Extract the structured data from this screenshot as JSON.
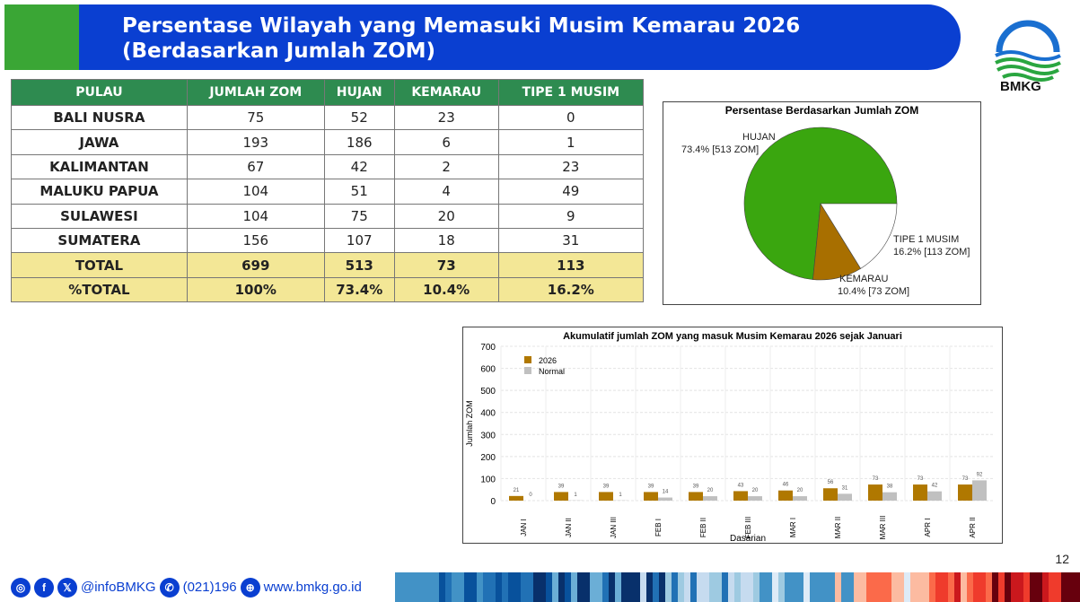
{
  "header": {
    "title_line1": "Persentase Wilayah yang Memasuki Musim Kemarau 2026",
    "title_line2": "(Berdasarkan Jumlah ZOM)",
    "logo_text": "BMKG"
  },
  "table": {
    "columns": [
      "PULAU",
      "JUMLAH ZOM",
      "HUJAN",
      "KEMARAU",
      "TIPE 1 MUSIM"
    ],
    "rows": [
      [
        "BALI NUSRA",
        "75",
        "52",
        "23",
        "0"
      ],
      [
        "JAWA",
        "193",
        "186",
        "6",
        "1"
      ],
      [
        "KALIMANTAN",
        "67",
        "42",
        "2",
        "23"
      ],
      [
        "MALUKU PAPUA",
        "104",
        "51",
        "4",
        "49"
      ],
      [
        "SULAWESI",
        "104",
        "75",
        "20",
        "9"
      ],
      [
        "SUMATERA",
        "156",
        "107",
        "18",
        "31"
      ]
    ],
    "totals": [
      [
        "TOTAL",
        "699",
        "513",
        "73",
        "113"
      ],
      [
        "%TOTAL",
        "100%",
        "73.4%",
        "10.4%",
        "16.2%"
      ]
    ]
  },
  "chart_data": [
    {
      "type": "pie",
      "title": "Persentase Berdasarkan Jumlah ZOM",
      "slices": [
        {
          "label": "HUJAN",
          "value": 73.4,
          "text": "73.4% [513 ZOM]",
          "color": "#3aa60f"
        },
        {
          "label": "KEMARAU",
          "value": 10.4,
          "text": "10.4% [73 ZOM]",
          "color": "#a86f00"
        },
        {
          "label": "TIPE 1 MUSIM",
          "value": 16.2,
          "text": "16.2% [113 ZOM]",
          "color": "#ffffff"
        }
      ]
    },
    {
      "type": "bar",
      "title": "Akumulatif jumlah ZOM yang masuk Musim Kemarau 2026 sejak Januari",
      "xlabel": "Dasarian",
      "ylabel": "Jumlah ZOM",
      "ylim": [
        0,
        700
      ],
      "yticks": [
        0,
        100,
        200,
        300,
        400,
        500,
        600,
        700
      ],
      "grid": true,
      "legend": "top-left",
      "categories": [
        "JAN I",
        "JAN II",
        "JAN III",
        "FEB I",
        "FEB II",
        "FEB III",
        "MAR I",
        "MAR II",
        "MAR III",
        "APR I",
        "APR II"
      ],
      "series": [
        {
          "name": "2026",
          "color": "#b07800",
          "values": [
            21,
            39,
            39,
            39,
            39,
            43,
            46,
            56,
            73,
            73,
            73
          ]
        },
        {
          "name": "Normal",
          "color": "#c0c0c0",
          "values": [
            0,
            1,
            1,
            14,
            20,
            20,
            20,
            31,
            38,
            42,
            92
          ]
        }
      ]
    }
  ],
  "footer": {
    "handle": "@infoBMKG",
    "phone": "(021)196",
    "website": "www.bmkg.go.id",
    "page": "12"
  }
}
